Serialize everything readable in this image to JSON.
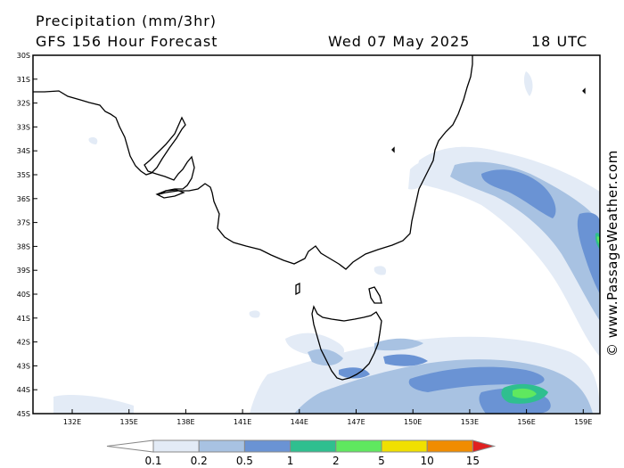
{
  "header": {
    "title": "Precipitation (mm/3hr)",
    "model": "GFS 156 Hour Forecast",
    "date": "Wed 07 May 2025",
    "time": "18 UTC"
  },
  "credit": "© www.PassageWeather.com",
  "map": {
    "lat_labels": [
      "30S",
      "31S",
      "32S",
      "33S",
      "34S",
      "35S",
      "36S",
      "37S",
      "38S",
      "39S",
      "40S",
      "41S",
      "42S",
      "43S",
      "44S",
      "45S"
    ],
    "lon_labels": [
      "132E",
      "135E",
      "138E",
      "141E",
      "144E",
      "147E",
      "150E",
      "153E",
      "156E",
      "159E"
    ],
    "lat_range": [
      -30,
      -45
    ],
    "lon_range": [
      130,
      160
    ]
  },
  "legend": {
    "labels": [
      "0.1",
      "0.2",
      "0.5",
      "1",
      "2",
      "5",
      "10",
      "15"
    ],
    "colors": [
      "#ffffff",
      "#e3ebf6",
      "#a8c2e2",
      "#6a93d4",
      "#2fbf8f",
      "#5fe85f",
      "#f0e000",
      "#f08c00",
      "#e02020"
    ]
  }
}
